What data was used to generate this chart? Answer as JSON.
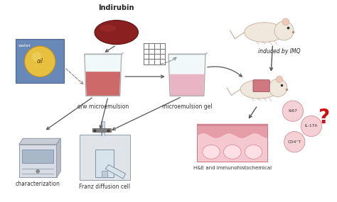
{
  "background_color": "#ffffff",
  "labels": {
    "indirubin": "Indirubin",
    "ow_microemulsion": "o/w microemulsion",
    "microemulsion_gel": "microemulsion gel",
    "characterization": "characterization",
    "franz": "Franz diffusion cell",
    "he": "H&E and immunohistochemical",
    "induced": "induced by IMQ",
    "water": "water",
    "oil": "oil",
    "ki67": "Ki67",
    "il17a": "IL-17A",
    "cd4t": "CD4⁺T",
    "question": "?"
  },
  "colors": {
    "background": "#ffffff",
    "beaker_liquid_dark": "#c85050",
    "beaker_liquid_light": "#e8aabb",
    "beaker_glass_fill": "#e8f4f8",
    "beaker_glass_edge": "#aaaaaa",
    "oil_circle": "#e8c040",
    "water_bg": "#6888b8",
    "arrow": "#555555",
    "arrow_dashed": "#888888",
    "text": "#222222",
    "skin_base": "#f5c8d0",
    "skin_upper": "#e0909a",
    "skin_line": "#d07080",
    "skin_papillae": "#fce0e5",
    "mouse_body": "#f0e8dc",
    "mouse_edge": "#c8b8a8",
    "mouse_ear": "#f0c8b8",
    "mouse_patch": "#d07080",
    "bubble_fill": "#f5d0d5",
    "bubble_edge": "#d09098",
    "question_color": "#cc1111",
    "label_color": "#333333",
    "indir_fill": "#8b2020",
    "indir_edge": "#5a1010",
    "grid_color": "#707070",
    "inst_fill": "#d0d8e0",
    "inst_edge": "#909aa0",
    "inst_top": "#c0c8d0",
    "franz_fill": "#d8e4ec",
    "franz_edge": "#8090a0"
  },
  "figsize": [
    4.74,
    2.85
  ],
  "dpi": 100
}
